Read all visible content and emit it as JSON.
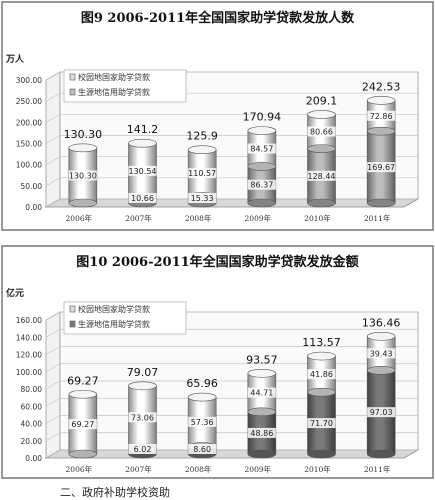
{
  "footer_text": "二、政府补助学校资助",
  "chart_data": [
    {
      "type": "bar",
      "title": "图9  2006-2011年全国国家助学贷款发放人数",
      "ylabel": "万人",
      "categories": [
        "2006年",
        "2007年",
        "2008年",
        "2009年",
        "2010年",
        "2011年"
      ],
      "ylim": [
        0,
        300
      ],
      "yticks": [
        "0.00",
        "50.00",
        "100.00",
        "150.00",
        "200.00",
        "250.00",
        "300.00"
      ],
      "stacked": true,
      "totals": [
        130.3,
        141.2,
        125.9,
        170.94,
        209.1,
        242.53
      ],
      "totals_display": [
        "130.30",
        "141.2",
        "125.9",
        "170.94",
        "209.1",
        "242.53"
      ],
      "series": [
        {
          "name": "校园地国家助学贷款",
          "values": [
            130.3,
            130.54,
            110.57,
            84.57,
            80.66,
            72.86
          ],
          "labels": [
            "130.30",
            "130.54",
            "110.57",
            "84.57",
            "80.66",
            "72.86"
          ],
          "color": "#ffffff"
        },
        {
          "name": "生源地信用助学贷款",
          "values": [
            0,
            10.66,
            15.33,
            86.37,
            128.44,
            169.67
          ],
          "labels": [
            "",
            "10.66",
            "15.33",
            "86.37",
            "128.44",
            "169.67"
          ],
          "color": "#bdbdbd"
        }
      ]
    },
    {
      "type": "bar",
      "title": "图10  2006-2011年全国国家助学贷款发放金额",
      "ylabel": "亿元",
      "categories": [
        "2006年",
        "2007年",
        "2008年",
        "2009年",
        "2010年",
        "2011年"
      ],
      "ylim": [
        0,
        160
      ],
      "yticks": [
        "0.00",
        "20.00",
        "40.00",
        "60.00",
        "80.00",
        "100.00",
        "120.00",
        "140.00",
        "160.00"
      ],
      "stacked": true,
      "totals": [
        69.27,
        79.07,
        65.96,
        93.57,
        113.57,
        136.46
      ],
      "totals_display": [
        "69.27",
        "79.07",
        "65.96",
        "93.57",
        "113.57",
        "136.46"
      ],
      "series": [
        {
          "name": "校园地国家助学贷款",
          "values": [
            69.27,
            73.06,
            57.36,
            44.71,
            41.86,
            39.43
          ],
          "labels": [
            "69.27",
            "73.06",
            "57.36",
            "44.71",
            "41.86",
            "39.43"
          ],
          "color": "#ffffff"
        },
        {
          "name": "生源地信用助学贷款",
          "values": [
            0,
            6.02,
            8.6,
            48.86,
            71.7,
            97.03
          ],
          "labels": [
            "",
            "6.02",
            "8.60",
            "48.86",
            "71.70",
            "97.03"
          ],
          "color": "#7a7a7a"
        }
      ]
    }
  ]
}
